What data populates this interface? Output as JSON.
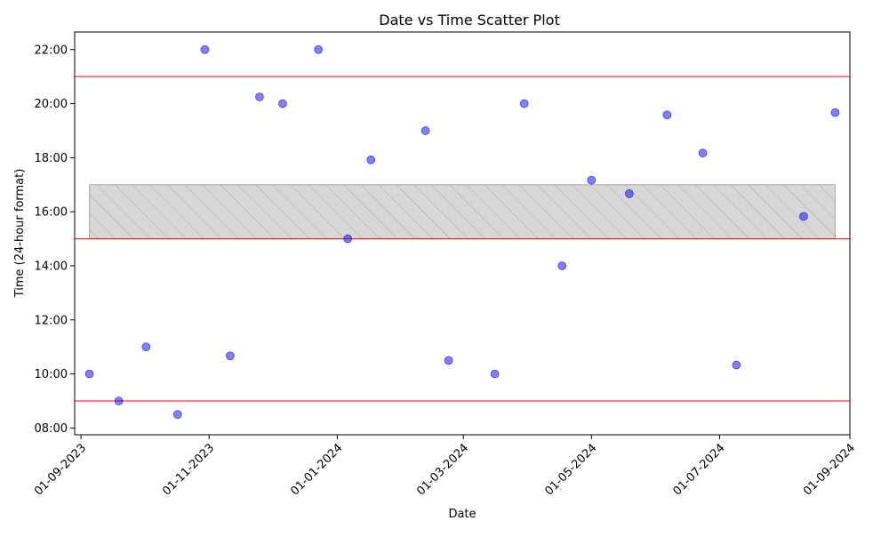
{
  "chart_data": {
    "type": "scatter",
    "title": "Date vs Time Scatter Plot",
    "xlabel": "Date",
    "ylabel": "Time (24-hour format)",
    "x_ticks": [
      "01-09-2023",
      "01-11-2023",
      "01-01-2024",
      "01-03-2024",
      "01-05-2024",
      "01-07-2024",
      "01-09-2024"
    ],
    "y_ticks": [
      "08:00",
      "10:00",
      "12:00",
      "14:00",
      "16:00",
      "18:00",
      "20:00",
      "22:00"
    ],
    "xlim": [
      "2023-08-29",
      "2024-09-01"
    ],
    "ylim": [
      7.75,
      22.65
    ],
    "grid": false,
    "colors": {
      "points": "#0000ff",
      "reference_lines": "#ff0000",
      "band_fill": "#d3d3d3",
      "band_edge": "#a9a9a9"
    },
    "reference_lines_hours": [
      9,
      15,
      21
    ],
    "shaded_band": {
      "x_start": "2023-09-05",
      "x_end": "2024-08-25",
      "y_min": 15,
      "y_max": 17,
      "hatch": "diagonal"
    },
    "points": [
      {
        "x": "2023-09-05",
        "y": 10.0
      },
      {
        "x": "2023-09-19",
        "y": 9.0
      },
      {
        "x": "2023-10-02",
        "y": 11.0
      },
      {
        "x": "2023-10-17",
        "y": 8.5
      },
      {
        "x": "2023-10-30",
        "y": 22.0
      },
      {
        "x": "2023-11-11",
        "y": 10.67
      },
      {
        "x": "2023-11-25",
        "y": 20.25
      },
      {
        "x": "2023-12-06",
        "y": 20.0
      },
      {
        "x": "2023-12-23",
        "y": 22.0
      },
      {
        "x": "2024-01-06",
        "y": 15.0
      },
      {
        "x": "2024-01-17",
        "y": 17.92
      },
      {
        "x": "2024-02-12",
        "y": 19.0
      },
      {
        "x": "2024-02-23",
        "y": 10.5
      },
      {
        "x": "2024-03-16",
        "y": 10.0
      },
      {
        "x": "2024-03-30",
        "y": 20.0
      },
      {
        "x": "2024-04-17",
        "y": 14.0
      },
      {
        "x": "2024-05-01",
        "y": 17.17
      },
      {
        "x": "2024-05-19",
        "y": 16.67
      },
      {
        "x": "2024-06-06",
        "y": 19.58
      },
      {
        "x": "2024-06-23",
        "y": 18.17
      },
      {
        "x": "2024-07-09",
        "y": 10.33
      },
      {
        "x": "2024-08-10",
        "y": 15.83
      },
      {
        "x": "2024-08-25",
        "y": 19.67
      }
    ]
  }
}
